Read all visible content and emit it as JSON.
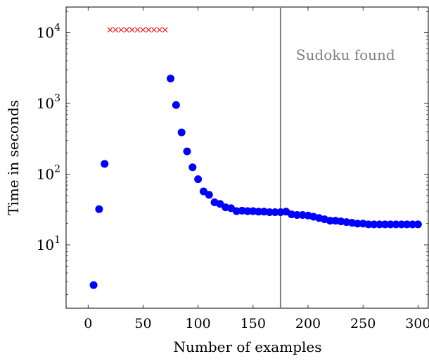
{
  "chart_data": {
    "type": "scatter",
    "title": "",
    "xlabel": "Number of examples",
    "ylabel": "Time in seconds",
    "xlim": [
      -20,
      310
    ],
    "ylim_log10": [
      -0.4,
      1.4
    ],
    "yscale": "log",
    "x_ticks": [
      0,
      50,
      100,
      150,
      200,
      250,
      300
    ],
    "y_ticks": [
      {
        "value": 10,
        "base": "10",
        "exp": "1"
      },
      {
        "value": 100,
        "base": "10",
        "exp": "2"
      },
      {
        "value": 1000,
        "base": "10",
        "exp": "3"
      },
      {
        "value": 10000,
        "base": "10",
        "exp": "4"
      }
    ],
    "grid": false,
    "series": [
      {
        "marker": "circle",
        "color": "#0000ff",
        "x": [
          5,
          10,
          15,
          75,
          80,
          85,
          90,
          95,
          100,
          105,
          110,
          115,
          120,
          125,
          130,
          135,
          140,
          145,
          150,
          155,
          160,
          165,
          170,
          175,
          180,
          185,
          190,
          195,
          200,
          205,
          210,
          215,
          220,
          225,
          230,
          235,
          240,
          245,
          250,
          255,
          260,
          265,
          270,
          275,
          280,
          285,
          290,
          295,
          300
        ],
        "y": [
          2.7,
          32,
          140,
          2250,
          950,
          390,
          210,
          125,
          85,
          57,
          51,
          40,
          38,
          34,
          33,
          30,
          30.5,
          30,
          30,
          29.5,
          29.5,
          29,
          29,
          29,
          29.5,
          27,
          26.5,
          26.5,
          26,
          25,
          24,
          23,
          22,
          22,
          21.5,
          21,
          20.5,
          20,
          20,
          19.5,
          19.5,
          19.5,
          19.5,
          19.5,
          19.5,
          19.5,
          19.5,
          19.5,
          19.5
        ]
      },
      {
        "marker": "cross",
        "color": "#ff0000",
        "x": [
          20,
          25,
          30,
          35,
          40,
          45,
          50,
          55,
          60,
          65,
          70
        ],
        "y": [
          11000,
          11000,
          11000,
          11000,
          11000,
          11000,
          11000,
          11000,
          11000,
          11000,
          11000
        ]
      }
    ],
    "vline": {
      "x": 175,
      "color": "#808080",
      "label": "Sudoku found"
    }
  }
}
